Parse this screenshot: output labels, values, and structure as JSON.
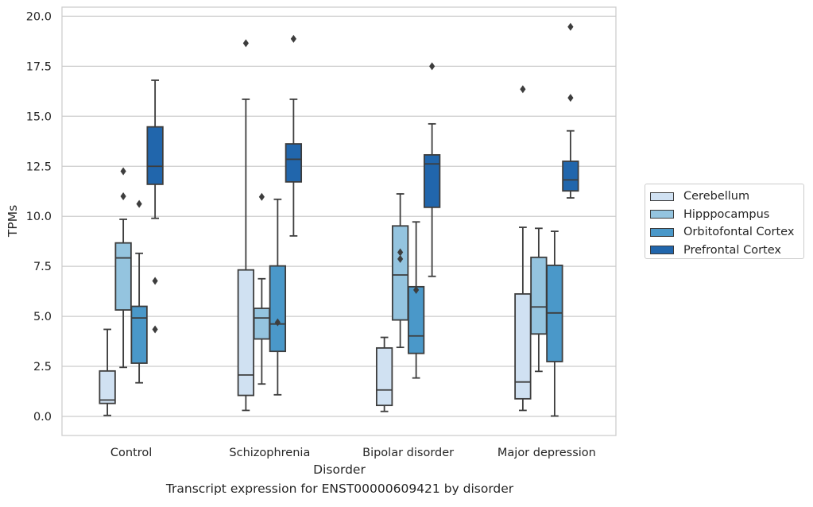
{
  "chart_data": {
    "type": "box",
    "title": "",
    "caption": "Transcript expression for ENST00000609421 by disorder",
    "xlabel": "Disorder",
    "ylabel": "TPMs",
    "ylim": [
      -0.95,
      20.45
    ],
    "yticks": [
      "0.0",
      "2.5",
      "5.0",
      "7.5",
      "10.0",
      "12.5",
      "15.0",
      "17.5",
      "20.0"
    ],
    "grid": true,
    "legend_position": "right",
    "categories": [
      "Control",
      "Schizophrenia",
      "Bipolar disorder",
      "Major depression"
    ],
    "series": [
      {
        "name": "Cerebellum",
        "color": "#d0e1f2",
        "boxes": [
          {
            "whislo": 0.05,
            "q1": 0.65,
            "med": 0.82,
            "q3": 2.27,
            "whishi": 4.35,
            "fliers": []
          },
          {
            "whislo": 0.3,
            "q1": 1.05,
            "med": 2.07,
            "q3": 7.32,
            "whishi": 15.85,
            "fliers": [
              18.65
            ]
          },
          {
            "whislo": 0.25,
            "q1": 0.55,
            "med": 1.32,
            "q3": 3.42,
            "whishi": 3.95,
            "fliers": []
          },
          {
            "whislo": 0.3,
            "q1": 0.88,
            "med": 1.72,
            "q3": 6.12,
            "whishi": 9.45,
            "fliers": [
              16.35
            ]
          }
        ]
      },
      {
        "name": "Hipppocampus",
        "color": "#94c4df",
        "boxes": [
          {
            "whislo": 2.45,
            "q1": 5.32,
            "med": 7.92,
            "q3": 8.67,
            "whishi": 9.85,
            "fliers": [
              11.0,
              12.25
            ]
          },
          {
            "whislo": 1.62,
            "q1": 3.87,
            "med": 4.92,
            "q3": 5.4,
            "whishi": 6.88,
            "fliers": [
              10.97
            ]
          },
          {
            "whislo": 3.45,
            "q1": 4.82,
            "med": 7.07,
            "q3": 9.52,
            "whishi": 11.12,
            "fliers": [
              7.87,
              8.2
            ]
          },
          {
            "whislo": 2.25,
            "q1": 4.12,
            "med": 5.47,
            "q3": 7.95,
            "whishi": 9.4,
            "fliers": []
          }
        ]
      },
      {
        "name": "Orbitofontal Cortex",
        "color": "#4a98c9",
        "boxes": [
          {
            "whislo": 1.68,
            "q1": 2.66,
            "med": 4.92,
            "q3": 5.5,
            "whishi": 8.15,
            "fliers": [
              10.62
            ]
          },
          {
            "whislo": 1.08,
            "q1": 3.25,
            "med": 4.62,
            "q3": 7.52,
            "whishi": 10.85,
            "fliers": [
              4.7
            ]
          },
          {
            "whislo": 1.92,
            "q1": 3.15,
            "med": 4.02,
            "q3": 6.48,
            "whishi": 9.72,
            "fliers": [
              6.32
            ]
          },
          {
            "whislo": 0.02,
            "q1": 2.74,
            "med": 5.17,
            "q3": 7.55,
            "whishi": 9.25,
            "fliers": []
          }
        ]
      },
      {
        "name": "Prefrontal Cortex",
        "color": "#2166ac",
        "boxes": [
          {
            "whislo": 9.9,
            "q1": 11.6,
            "med": 12.5,
            "q3": 14.47,
            "whishi": 16.8,
            "fliers": [
              4.35,
              6.77
            ]
          },
          {
            "whislo": 9.02,
            "q1": 11.72,
            "med": 12.85,
            "q3": 13.62,
            "whishi": 15.85,
            "fliers": [
              18.87
            ]
          },
          {
            "whislo": 7.0,
            "q1": 10.45,
            "med": 12.62,
            "q3": 13.07,
            "whishi": 14.62,
            "fliers": [
              17.5
            ]
          },
          {
            "whislo": 10.92,
            "q1": 11.27,
            "med": 11.82,
            "q3": 12.75,
            "whishi": 14.27,
            "fliers": [
              15.92,
              19.47
            ]
          }
        ]
      }
    ]
  }
}
